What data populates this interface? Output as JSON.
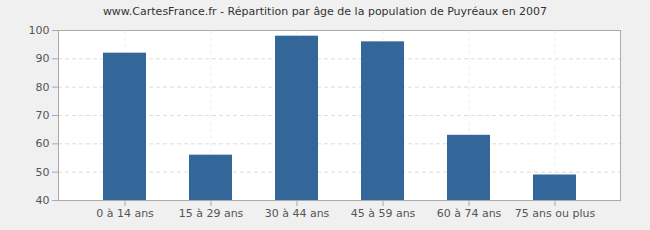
{
  "chart_data": {
    "type": "bar",
    "title": "www.CartesFrance.fr - Répartition par âge de la population de Puyréaux en 2007",
    "categories": [
      "0 à 14 ans",
      "15 à 29 ans",
      "30 à 44 ans",
      "45 à 59 ans",
      "60 à 74 ans",
      "75 ans ou plus"
    ],
    "values": [
      92,
      56,
      98,
      96,
      63,
      49
    ],
    "color": "#336699",
    "ylim": [
      40,
      100
    ],
    "yticks": [
      40,
      50,
      60,
      70,
      80,
      90,
      100
    ],
    "grid": true
  }
}
